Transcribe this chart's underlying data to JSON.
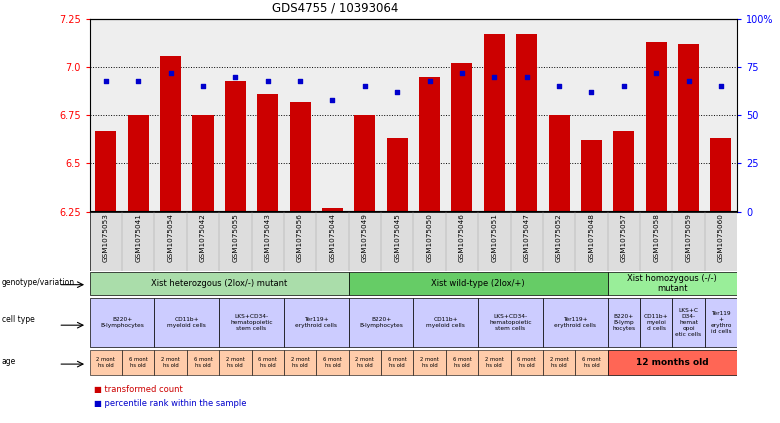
{
  "title": "GDS4755 / 10393064",
  "samples": [
    "GSM1075053",
    "GSM1075041",
    "GSM1075054",
    "GSM1075042",
    "GSM1075055",
    "GSM1075043",
    "GSM1075056",
    "GSM1075044",
    "GSM1075049",
    "GSM1075045",
    "GSM1075050",
    "GSM1075046",
    "GSM1075051",
    "GSM1075047",
    "GSM1075052",
    "GSM1075048",
    "GSM1075057",
    "GSM1075058",
    "GSM1075059",
    "GSM1075060"
  ],
  "bar_values": [
    6.67,
    6.75,
    7.06,
    6.75,
    6.93,
    6.86,
    6.82,
    6.27,
    6.75,
    6.63,
    6.95,
    7.02,
    7.17,
    7.17,
    6.75,
    6.62,
    6.67,
    7.13,
    7.12,
    6.63
  ],
  "dot_values": [
    68,
    68,
    72,
    65,
    70,
    68,
    68,
    58,
    65,
    62,
    68,
    72,
    70,
    70,
    65,
    62,
    65,
    72,
    68,
    65
  ],
  "ylim_left": [
    6.25,
    7.25
  ],
  "ylim_right": [
    0,
    100
  ],
  "yticks_left": [
    6.25,
    6.5,
    6.75,
    7.0,
    7.25
  ],
  "yticks_right": [
    0,
    25,
    50,
    75,
    100
  ],
  "ytick_labels_right": [
    "0",
    "25",
    "50",
    "75",
    "100%"
  ],
  "bar_color": "#cc0000",
  "dot_color": "#0000cc",
  "background_color": "#ffffff",
  "genotype_groups": [
    {
      "label": "Xist heterozgous (2lox/-) mutant",
      "start": 0,
      "end": 7,
      "color": "#aaddaa"
    },
    {
      "label": "Xist wild-type (2lox/+)",
      "start": 8,
      "end": 15,
      "color": "#66cc66"
    },
    {
      "label": "Xist homozygous (-/-)\nmutant",
      "start": 16,
      "end": 19,
      "color": "#99ee99"
    }
  ],
  "cell_type_groups": [
    {
      "label": "B220+\nB-lymphocytes",
      "start": 0,
      "end": 1
    },
    {
      "label": "CD11b+\nmyeloid cells",
      "start": 2,
      "end": 3
    },
    {
      "label": "LKS+CD34-\nhematopoietic\nstem cells",
      "start": 4,
      "end": 5
    },
    {
      "label": "Ter119+\nerythroid cells",
      "start": 6,
      "end": 7
    },
    {
      "label": "B220+\nB-lymphocytes",
      "start": 8,
      "end": 9
    },
    {
      "label": "CD11b+\nmyeloid cells",
      "start": 10,
      "end": 11
    },
    {
      "label": "LKS+CD34-\nhematopoietic\nstem cells",
      "start": 12,
      "end": 13
    },
    {
      "label": "Ter119+\nerythroid cells",
      "start": 14,
      "end": 15
    },
    {
      "label": "B220+\nB-lymp\nhocytes",
      "start": 16,
      "end": 16
    },
    {
      "label": "CD11b+\nmyeloi\nd cells",
      "start": 17,
      "end": 17
    },
    {
      "label": "LKS+C\nD34-\nhemat\nopoi\netic cells",
      "start": 18,
      "end": 18
    },
    {
      "label": "Ter119\n+\nerythro\nid cells",
      "start": 19,
      "end": 19
    }
  ],
  "cell_type_color": "#ccccff",
  "age_color_light": "#ffccaa",
  "age_color_dark": "#ff6655",
  "legend_bar_label": "transformed count",
  "legend_dot_label": "percentile rank within the sample"
}
